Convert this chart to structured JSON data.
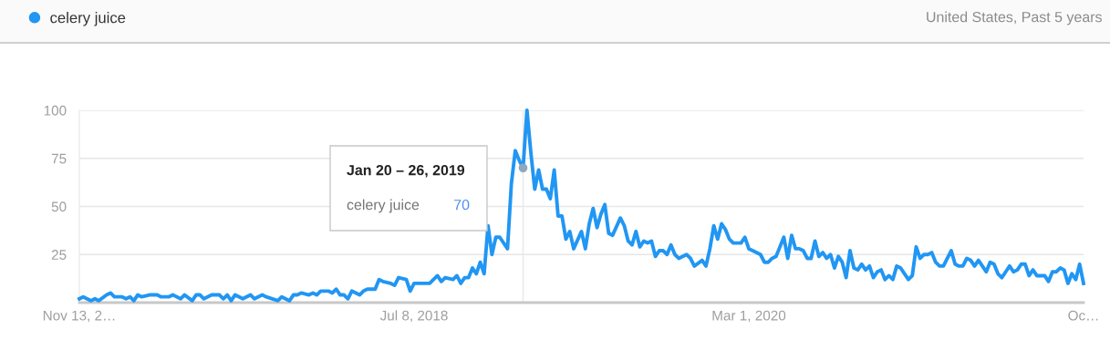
{
  "chart_data": {
    "type": "line",
    "subtitle": "United States, Past 5 years",
    "x": [
      "2016-11-13",
      "2016-11-20",
      "2016-12-04",
      "2016-12-11",
      "2016-12-18",
      "2017-01-01",
      "2017-01-08",
      "2017-01-15",
      "2017-01-29",
      "2017-02-05",
      "2017-02-12",
      "2017-02-19",
      "2017-02-26",
      "2017-03-05",
      "2017-03-19",
      "2017-03-26",
      "2017-04-02",
      "2017-04-09",
      "2017-04-23",
      "2017-04-30",
      "2017-05-14",
      "2017-05-21",
      "2017-06-04",
      "2017-06-11",
      "2017-06-18",
      "2017-06-25",
      "2017-07-09",
      "2017-07-23",
      "2017-07-30",
      "2017-08-06",
      "2017-08-13",
      "2017-08-20",
      "2017-09-03",
      "2017-09-17",
      "2017-09-24",
      "2017-10-08",
      "2017-10-15",
      "2017-11-05",
      "2017-11-12",
      "2017-11-26",
      "2017-12-03",
      "2017-12-10",
      "2017-12-17",
      "2017-12-31",
      "2018-01-07",
      "2018-01-14",
      "2018-01-21",
      "2018-02-04",
      "2018-02-11",
      "2018-02-18",
      "2018-02-25",
      "2018-03-04",
      "2018-03-11",
      "2018-03-18",
      "2018-04-01",
      "2018-04-08",
      "2018-04-15",
      "2018-04-29",
      "2018-05-06",
      "2018-05-13",
      "2018-05-27",
      "2018-06-03",
      "2018-06-10",
      "2018-06-24",
      "2018-07-01",
      "2018-07-08",
      "2018-07-22",
      "2018-08-05",
      "2018-08-19",
      "2018-08-26",
      "2018-09-02",
      "2018-09-16",
      "2018-09-23",
      "2018-09-30",
      "2018-10-07",
      "2018-10-14",
      "2018-10-21",
      "2018-10-28",
      "2018-11-04",
      "2018-11-11",
      "2018-11-18",
      "2018-11-25",
      "2018-12-02",
      "2018-12-09",
      "2018-12-23",
      "2018-12-30",
      "2019-01-06",
      "2019-01-13",
      "2019-01-20",
      "2019-01-27",
      "2019-02-03",
      "2019-02-10",
      "2019-02-17",
      "2019-02-24",
      "2019-03-03",
      "2019-03-10",
      "2019-03-17",
      "2019-03-24",
      "2019-03-31",
      "2019-04-07",
      "2019-04-14",
      "2019-04-21",
      "2019-05-05",
      "2019-05-12",
      "2019-05-19",
      "2019-05-26",
      "2019-06-02",
      "2019-06-09",
      "2019-06-16",
      "2019-06-23",
      "2019-06-30",
      "2019-07-14",
      "2019-07-21",
      "2019-07-28",
      "2019-08-04",
      "2019-08-11",
      "2019-08-18",
      "2019-08-25",
      "2019-09-01",
      "2019-09-08",
      "2019-09-15",
      "2019-09-22",
      "2019-09-29",
      "2019-10-06",
      "2019-10-13",
      "2019-10-20",
      "2019-10-27",
      "2019-11-10",
      "2019-11-17",
      "2019-11-24",
      "2019-12-08",
      "2019-12-15",
      "2019-12-22",
      "2019-12-29",
      "2020-01-05",
      "2020-01-12",
      "2020-01-19",
      "2020-01-26",
      "2020-02-02",
      "2020-02-16",
      "2020-02-23",
      "2020-03-01",
      "2020-03-08",
      "2020-03-22",
      "2020-03-29",
      "2020-04-05",
      "2020-04-12",
      "2020-04-19",
      "2020-05-03",
      "2020-05-10",
      "2020-05-17",
      "2020-05-24",
      "2020-05-31",
      "2020-06-07",
      "2020-06-14",
      "2020-06-21",
      "2020-06-28",
      "2020-07-05",
      "2020-07-12",
      "2020-07-19",
      "2020-07-26",
      "2020-08-02",
      "2020-08-09",
      "2020-08-16",
      "2020-08-23",
      "2020-08-30",
      "2020-09-06",
      "2020-09-13",
      "2020-09-20",
      "2020-09-27",
      "2020-10-04",
      "2020-10-11",
      "2020-10-18",
      "2020-10-25",
      "2020-11-01",
      "2020-11-08",
      "2020-11-15",
      "2020-11-22",
      "2020-11-29",
      "2020-12-06",
      "2020-12-13",
      "2020-12-20",
      "2020-12-27",
      "2021-01-03",
      "2021-01-10",
      "2021-01-17",
      "2021-01-24",
      "2021-01-31",
      "2021-02-07",
      "2021-02-14",
      "2021-02-21",
      "2021-02-28",
      "2021-03-07",
      "2021-03-14",
      "2021-03-21",
      "2021-03-28",
      "2021-04-04",
      "2021-04-11",
      "2021-04-18",
      "2021-04-25",
      "2021-05-02",
      "2021-05-09",
      "2021-05-16",
      "2021-05-23",
      "2021-05-30",
      "2021-06-06",
      "2021-06-13",
      "2021-06-20",
      "2021-06-27",
      "2021-07-04",
      "2021-07-11",
      "2021-07-18",
      "2021-07-25",
      "2021-08-01",
      "2021-08-15",
      "2021-08-22",
      "2021-08-29",
      "2021-09-05",
      "2021-09-12",
      "2021-09-19",
      "2021-09-26",
      "2021-10-03",
      "2021-10-10",
      "2021-10-17",
      "2021-10-24"
    ],
    "series": [
      {
        "name": "celery juice",
        "color": "#2196f3",
        "values": [
          2,
          3,
          1,
          2,
          1,
          4,
          5,
          3,
          3,
          2,
          3,
          1,
          4,
          3,
          4,
          4,
          4,
          3,
          3,
          4,
          2,
          4,
          1,
          4,
          4,
          2,
          4,
          4,
          2,
          4,
          1,
          4,
          2,
          4,
          2,
          4,
          3,
          1,
          3,
          1,
          4,
          4,
          5,
          4,
          5,
          4,
          6,
          6,
          5,
          7,
          4,
          4,
          2,
          6,
          4,
          6,
          7,
          7,
          12,
          11,
          10,
          9,
          13,
          12,
          6,
          10,
          10,
          10,
          14,
          11,
          13,
          12,
          14,
          10,
          13,
          13,
          18,
          15,
          21,
          15,
          40,
          25,
          34,
          34,
          28,
          62,
          79,
          74,
          70,
          100,
          78,
          59,
          69,
          59,
          59,
          54,
          69,
          45,
          45,
          33,
          37,
          28,
          37,
          28,
          41,
          49,
          39,
          46,
          51,
          36,
          35,
          44,
          40,
          32,
          30,
          37,
          29,
          32,
          31,
          32,
          24,
          27,
          27,
          25,
          30,
          25,
          23,
          25,
          23,
          19,
          22,
          19,
          28,
          40,
          33,
          41,
          38,
          33,
          31,
          31,
          34,
          28,
          27,
          25,
          21,
          21,
          23,
          24,
          34,
          23,
          35,
          28,
          28,
          27,
          23,
          23,
          32,
          24,
          26,
          23,
          25,
          18,
          24,
          21,
          13,
          27,
          18,
          17,
          20,
          17,
          19,
          13,
          16,
          17,
          12,
          14,
          12,
          19,
          18,
          15,
          12,
          14,
          29,
          23,
          25,
          25,
          26,
          21,
          19,
          19,
          23,
          27,
          20,
          19,
          19,
          23,
          22,
          19,
          22,
          19,
          16,
          21,
          20,
          15,
          13,
          16,
          19,
          16,
          17,
          20,
          20,
          14,
          17,
          14,
          14,
          11,
          16,
          16,
          18,
          17,
          10,
          15,
          12,
          20,
          10
        ]
      }
    ],
    "xlim": [
      "2016-11-13",
      "2021-10-24"
    ],
    "xticks": [
      {
        "value": "2016-11-13",
        "label": "Nov 13, 2…"
      },
      {
        "value": "2018-07-08",
        "label": "Jul 8, 2018"
      },
      {
        "value": "2020-03-01",
        "label": "Mar 1, 2020"
      },
      {
        "value": "2021-10-24",
        "label": "Oc…"
      }
    ],
    "ylim": [
      0,
      100
    ],
    "yticks": [
      {
        "value": 0,
        "label": null
      },
      25,
      50,
      75,
      100
    ],
    "grid": "y",
    "legend": "top left",
    "marker": "none",
    "line_style": "solid",
    "ref_lines": [
      {
        "axis": "x",
        "value": "2019-01-20",
        "color": "#e8e8e8"
      }
    ],
    "annotations": [
      "Jan 20 – 26, 2019",
      "70"
    ]
  }
}
